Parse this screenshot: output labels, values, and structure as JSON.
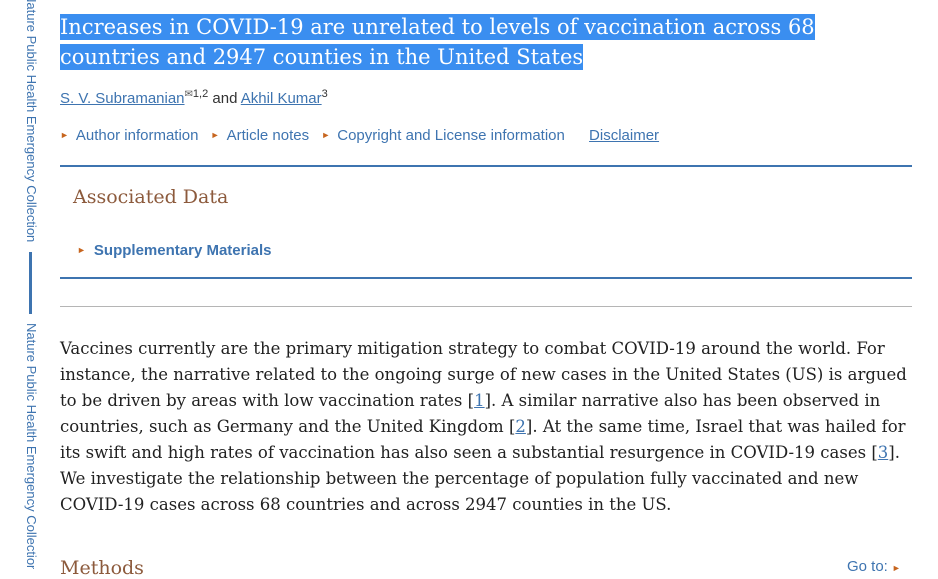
{
  "sidebar": {
    "top_text": "Nature Public Health Emergency Collection",
    "bottom_text": "Nature Public Health Emergency Collection"
  },
  "article": {
    "title": "Increases in COVID-19 are unrelated to levels of vaccination across 68 countries and 2947 counties in the United States",
    "authors": [
      {
        "name": "S. V. Subramanian",
        "affiliation": "1,2"
      },
      {
        "name": "Akhil Kumar",
        "affiliation": "3"
      }
    ],
    "author_separator": "and",
    "envelope_icon": "✉"
  },
  "meta_links": {
    "author_information": "Author information",
    "article_notes": "Article notes",
    "copyright": "Copyright and License information",
    "disclaimer": "Disclaimer"
  },
  "associated_data": {
    "title": "Associated Data",
    "supplementary": "Supplementary Materials"
  },
  "body": {
    "seg1": "Vaccines currently are the primary mitigation strategy to combat COVID-19 around the world. For instance, the narrative related to the ongoing surge of new cases in the United States (US) is argued to be driven by areas with low vaccination rates [",
    "ref1": "1",
    "seg2": "]. A similar narrative also has been observed in countries, such as Germany and the United Kingdom [",
    "ref2": "2",
    "seg3": "]. At the same time, Israel that was hailed for its swift and high rates of vaccination has also seen a substantial resurgence in COVID-19 cases [",
    "ref3": "3",
    "seg4": "]. We investigate the relationship between the percentage of population  fully vaccinated and new COVID-19 cases across 68 countries and across 2947 counties in the US."
  },
  "next_section": {
    "title": "Methods",
    "goto_label": "Go to:"
  },
  "colors": {
    "link_blue": "#3e74b0",
    "selection": "#3a8ef0",
    "heading_brown": "#8c5a3c",
    "bullet_orange": "#c7651e"
  }
}
